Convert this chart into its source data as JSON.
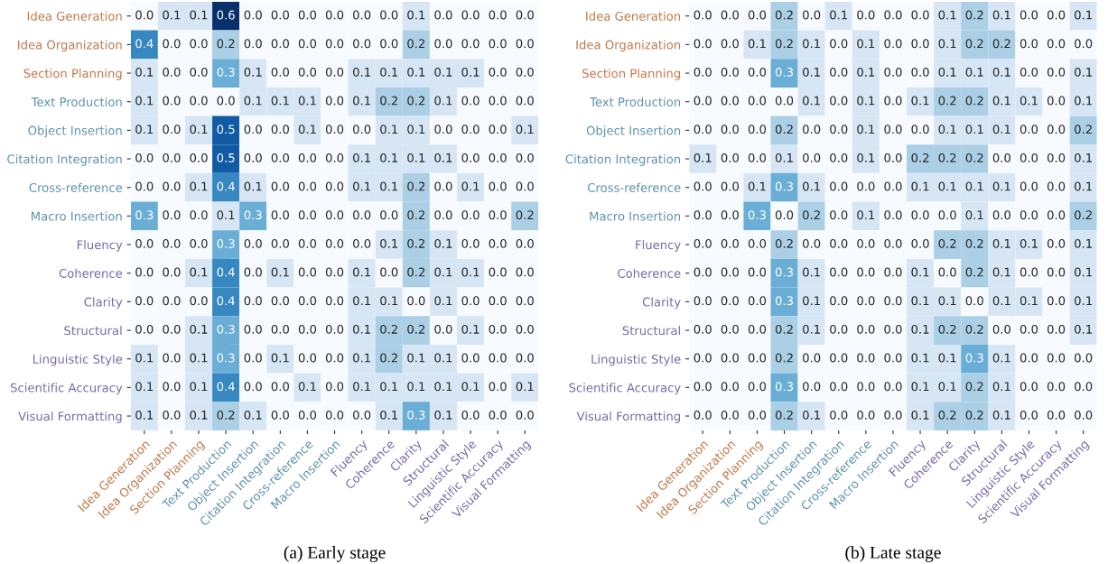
{
  "chart_data": [
    {
      "type": "heatmap",
      "title": "(a) Early stage",
      "categories": [
        "Idea Generation",
        "Idea Organization",
        "Section Planning",
        "Text Production",
        "Object Insertion",
        "Citation Integration",
        "Cross-reference",
        "Macro Insertion",
        "Fluency",
        "Coherence",
        "Clarity",
        "Structural",
        "Linguistic Style",
        "Scientific Accuracy",
        "Visual Formatting"
      ],
      "y_categories": [
        "Idea Generation",
        "Idea Organization",
        "Section Planning",
        "Text Production",
        "Object Insertion",
        "Citation Integration",
        "Cross-reference",
        "Macro Insertion",
        "Fluency",
        "Coherence",
        "Clarity",
        "Structural",
        "Linguistic Style",
        "Scientific Accuracy",
        "Visual Formatting"
      ],
      "cells": [
        [
          0.0,
          0.1,
          0.1,
          0.6,
          0.0,
          0.0,
          0.0,
          0.0,
          0.0,
          0.0,
          0.1,
          0.0,
          0.0,
          0.0,
          0.0
        ],
        [
          0.4,
          0.0,
          0.0,
          0.2,
          0.0,
          0.0,
          0.0,
          0.0,
          0.0,
          0.0,
          0.2,
          0.0,
          0.0,
          0.0,
          0.0
        ],
        [
          0.1,
          0.0,
          0.0,
          0.3,
          0.1,
          0.0,
          0.0,
          0.0,
          0.1,
          0.1,
          0.1,
          0.1,
          0.1,
          0.0,
          0.0
        ],
        [
          0.1,
          0.0,
          0.0,
          0.0,
          0.1,
          0.1,
          0.1,
          0.0,
          0.1,
          0.2,
          0.2,
          0.1,
          0.0,
          0.0,
          0.0
        ],
        [
          0.1,
          0.0,
          0.1,
          0.5,
          0.0,
          0.0,
          0.1,
          0.0,
          0.0,
          0.1,
          0.1,
          0.0,
          0.0,
          0.0,
          0.1
        ],
        [
          0.0,
          0.0,
          0.0,
          0.5,
          0.0,
          0.0,
          0.0,
          0.0,
          0.1,
          0.1,
          0.1,
          0.1,
          0.0,
          0.0,
          0.0
        ],
        [
          0.0,
          0.0,
          0.1,
          0.4,
          0.1,
          0.0,
          0.0,
          0.0,
          0.1,
          0.1,
          0.2,
          0.0,
          0.1,
          0.0,
          0.0
        ],
        [
          0.3,
          0.0,
          0.0,
          0.1,
          0.3,
          0.0,
          0.0,
          0.0,
          0.0,
          0.0,
          0.2,
          0.0,
          0.0,
          0.0,
          0.2
        ],
        [
          0.0,
          0.0,
          0.0,
          0.3,
          0.0,
          0.0,
          0.0,
          0.0,
          0.0,
          0.1,
          0.2,
          0.1,
          0.0,
          0.0,
          0.0
        ],
        [
          0.0,
          0.0,
          0.1,
          0.4,
          0.0,
          0.1,
          0.0,
          0.0,
          0.1,
          0.0,
          0.2,
          0.1,
          0.1,
          0.0,
          0.0
        ],
        [
          0.0,
          0.0,
          0.0,
          0.4,
          0.0,
          0.0,
          0.0,
          0.0,
          0.1,
          0.1,
          0.0,
          0.1,
          0.0,
          0.0,
          0.0
        ],
        [
          0.0,
          0.0,
          0.1,
          0.3,
          0.0,
          0.0,
          0.0,
          0.0,
          0.1,
          0.2,
          0.2,
          0.0,
          0.1,
          0.0,
          0.0
        ],
        [
          0.1,
          0.0,
          0.1,
          0.3,
          0.0,
          0.1,
          0.0,
          0.0,
          0.1,
          0.2,
          0.1,
          0.1,
          0.0,
          0.0,
          0.0
        ],
        [
          0.1,
          0.0,
          0.1,
          0.4,
          0.0,
          0.0,
          0.1,
          0.0,
          0.1,
          0.1,
          0.1,
          0.1,
          0.1,
          0.0,
          0.1
        ],
        [
          0.1,
          0.0,
          0.1,
          0.2,
          0.1,
          0.0,
          0.0,
          0.0,
          0.0,
          0.1,
          0.3,
          0.1,
          0.0,
          0.0,
          0.0
        ]
      ],
      "cell_labels": [
        [
          "0.0",
          "0.1",
          "0.1",
          "0.6",
          "0.0",
          "0.0",
          "0.0",
          "0.0",
          "0.0",
          "0.0",
          "0.1",
          "0.0",
          "0.0",
          "0.0",
          "0.0"
        ],
        [
          "0.4",
          "0.0",
          "0.0",
          "0.2",
          "0.0",
          "0.0",
          "0.0",
          "0.0",
          "0.0",
          "0.0",
          "0.2",
          "0.0",
          "0.0",
          "0.0",
          "0.0"
        ],
        [
          "0.1",
          "0.0",
          "0.0",
          "0.3",
          "0.1",
          "0.0",
          "0.0",
          "0.0",
          "0.1",
          "0.1",
          "0.1",
          "0.1",
          "0.1",
          "0.0",
          "0.0"
        ],
        [
          "0.1",
          "0.0",
          "0.0",
          "0.0",
          "0.1",
          "0.1",
          "0.1",
          "0.0",
          "0.1",
          "0.2",
          "0.2",
          "0.1",
          "0.0",
          "0.0",
          "0.0"
        ],
        [
          "0.1",
          "0.0",
          "0.1",
          "0.5",
          "0.0",
          "0.0",
          "0.1",
          "0.0",
          "0.0",
          "0.1",
          "0.1",
          "0.0",
          "0.0",
          "0.0",
          "0.1"
        ],
        [
          "0.0",
          "0.0",
          "0.0",
          "0.5",
          "0.0",
          "0.0",
          "0.0",
          "0.0",
          "0.1",
          "0.1",
          "0.1",
          "0.1",
          "0.0",
          "0.0",
          "0.0"
        ],
        [
          "0.0",
          "0.0",
          "0.1",
          "0.4",
          "0.1",
          "0.0",
          "0.0",
          "0.0",
          "0.1",
          "0.1",
          "0.2",
          "0.0",
          "0.1",
          "0.0",
          "0.0"
        ],
        [
          "0.3",
          "0.0",
          "0.0",
          "0.1",
          "0.3",
          "0.0",
          "0.0",
          "0.0",
          "0.0",
          "0.0",
          "0.2",
          "0.0",
          "0.0",
          "0.0",
          "0.2"
        ],
        [
          "0.0",
          "0.0",
          "0.0",
          "0.3",
          "0.0",
          "0.0",
          "0.0",
          "0.0",
          "0.0",
          "0.1",
          "0.2",
          "0.1",
          "0.0",
          "0.0",
          "0.0"
        ],
        [
          "0.0",
          "0.0",
          "0.1",
          "0.4",
          "0.0",
          "0.1",
          "0.0",
          "0.0",
          "0.1",
          "0.0",
          "0.2",
          "0.1",
          "0.1",
          "0.0",
          "0.0"
        ],
        [
          "0.0",
          "0.0",
          "0.0",
          "0.4",
          "0.0",
          "0.0",
          "0.0",
          "0.0",
          "0.1",
          "0.1",
          "0.0",
          "0.1",
          "0.0",
          "0.0",
          "0.0"
        ],
        [
          "0.0",
          "0.0",
          "0.1",
          "0.3",
          "0.0",
          "0.0",
          "0.0",
          "0.0",
          "0.1",
          "0.2",
          "0.2",
          "0.0",
          "0.1",
          "0.0",
          "0.0"
        ],
        [
          "0.1",
          "0.0",
          "0.1",
          "0.3",
          "0.0",
          "0.1",
          "0.0",
          "0.0",
          "0.1",
          "0.2",
          "0.1",
          "0.1",
          "0.0",
          "0.0",
          "0.0"
        ],
        [
          "0.1",
          "0.0",
          "0.1",
          "0.4",
          "0.0",
          "0.0",
          "0.1",
          "0.0",
          "0.1",
          "0.1",
          "0.1",
          "0.1",
          "0.1",
          "0.0",
          "0.1"
        ],
        [
          "0.1",
          "0.0",
          "0.1",
          "0.2",
          "0.1",
          "0.0",
          "0.0",
          "0.0",
          "0.0",
          "0.1",
          "0.3",
          "0.1",
          "0.0",
          "0.0",
          "0.0"
        ]
      ],
      "data_labels": true
    },
    {
      "type": "heatmap",
      "title": "(b) Late stage",
      "categories": [
        "Idea Generation",
        "Idea Organization",
        "Section Planning",
        "Text Production",
        "Object Insertion",
        "Citation Integration",
        "Cross-reference",
        "Macro Insertion",
        "Fluency",
        "Coherence",
        "Clarity",
        "Structural",
        "Linguistic Style",
        "Scientific Accuracy",
        "Visual Formatting"
      ],
      "y_categories": [
        "Idea Generation",
        "Idea Organization",
        "Section Planning",
        "Text Production",
        "Object Insertion",
        "Citation Integration",
        "Cross-reference",
        "Macro Insertion",
        "Fluency",
        "Coherence",
        "Clarity",
        "Structural",
        "Linguistic Style",
        "Scientific Accuracy",
        "Visual Formatting"
      ],
      "cells": [
        [
          0.0,
          0.0,
          0.0,
          0.2,
          0.0,
          0.1,
          0.0,
          0.0,
          0.0,
          0.1,
          0.2,
          0.1,
          0.0,
          0.0,
          0.1
        ],
        [
          0.0,
          0.0,
          0.1,
          0.2,
          0.1,
          0.0,
          0.1,
          0.0,
          0.0,
          0.1,
          0.2,
          0.2,
          0.0,
          0.0,
          0.0
        ],
        [
          0.0,
          0.0,
          0.0,
          0.3,
          0.1,
          0.0,
          0.1,
          0.0,
          0.0,
          0.1,
          0.1,
          0.1,
          0.0,
          0.0,
          0.1
        ],
        [
          0.0,
          0.0,
          0.0,
          0.0,
          0.1,
          0.0,
          0.1,
          0.0,
          0.1,
          0.2,
          0.2,
          0.1,
          0.1,
          0.0,
          0.1
        ],
        [
          0.0,
          0.0,
          0.0,
          0.2,
          0.0,
          0.0,
          0.1,
          0.0,
          0.0,
          0.1,
          0.1,
          0.1,
          0.0,
          0.0,
          0.2
        ],
        [
          0.1,
          0.0,
          0.0,
          0.1,
          0.0,
          0.0,
          0.1,
          0.0,
          0.2,
          0.2,
          0.2,
          0.0,
          0.0,
          0.0,
          0.1
        ],
        [
          0.0,
          0.0,
          0.1,
          0.3,
          0.1,
          0.0,
          0.0,
          0.0,
          0.1,
          0.1,
          0.1,
          0.1,
          0.0,
          0.0,
          0.1
        ],
        [
          0.0,
          0.0,
          0.3,
          0.0,
          0.2,
          0.0,
          0.1,
          0.0,
          0.0,
          0.0,
          0.1,
          0.0,
          0.0,
          0.0,
          0.2
        ],
        [
          0.0,
          0.0,
          0.0,
          0.2,
          0.0,
          0.0,
          0.0,
          0.0,
          0.0,
          0.2,
          0.2,
          0.1,
          0.1,
          0.0,
          0.1
        ],
        [
          0.0,
          0.0,
          0.0,
          0.3,
          0.1,
          0.0,
          0.0,
          0.0,
          0.1,
          0.0,
          0.2,
          0.1,
          0.0,
          0.0,
          0.1
        ],
        [
          0.0,
          0.0,
          0.0,
          0.3,
          0.1,
          0.0,
          0.0,
          0.0,
          0.1,
          0.1,
          0.0,
          0.1,
          0.1,
          0.0,
          0.1
        ],
        [
          0.0,
          0.0,
          0.0,
          0.2,
          0.1,
          0.0,
          0.0,
          0.0,
          0.1,
          0.2,
          0.2,
          0.0,
          0.0,
          0.0,
          0.1
        ],
        [
          0.0,
          0.0,
          0.0,
          0.2,
          0.0,
          0.0,
          0.0,
          0.0,
          0.1,
          0.1,
          0.3,
          0.1,
          0.0,
          0.0,
          0.0
        ],
        [
          0.0,
          0.0,
          0.0,
          0.3,
          0.0,
          0.0,
          0.0,
          0.0,
          0.1,
          0.1,
          0.2,
          0.1,
          0.0,
          0.0,
          0.0
        ],
        [
          0.0,
          0.0,
          0.0,
          0.2,
          0.1,
          0.0,
          0.0,
          0.0,
          0.1,
          0.2,
          0.2,
          0.1,
          0.0,
          0.0,
          0.0
        ]
      ],
      "cell_labels": [
        [
          "0.0",
          "0.0",
          "0.0",
          "0.2",
          "0.0",
          "0.1",
          "0.0",
          "0.0",
          "0.0",
          "0.1",
          "0.2",
          "0.1",
          "0.0",
          "0.0",
          "0.1"
        ],
        [
          "0.0",
          "0.0",
          "0.1",
          "0.2",
          "0.1",
          "0.0",
          "0.1",
          "0.0",
          "0.0",
          "0.1",
          "0.2",
          "0.2",
          "0.0",
          "0.0",
          "0.0"
        ],
        [
          "0.0",
          "0.0",
          "0.0",
          "0.3",
          "0.1",
          "0.0",
          "0.1",
          "0.0",
          "0.0",
          "0.1",
          "0.1",
          "0.1",
          "0.0",
          "0.0",
          "0.1"
        ],
        [
          "0.0",
          "0.0",
          "0.0",
          "0.0",
          "0.1",
          "0.0",
          "0.1",
          "0.0",
          "0.1",
          "0.2",
          "0.2",
          "0.1",
          "0.1",
          "0.0",
          "0.1"
        ],
        [
          "0.0",
          "0.0",
          "0.0",
          "0.2",
          "0.0",
          "0.0",
          "0.1",
          "0.0",
          "0.0",
          "0.1",
          "0.1",
          "0.1",
          "0.0",
          "0.0",
          "0.2"
        ],
        [
          "0.1",
          "0.0",
          "0.0",
          "0.1",
          "0.0",
          "0.0",
          "0.1",
          "0.0",
          "0.2",
          "0.2",
          "0.2",
          "0.0",
          "0.0",
          "0.0",
          "0.1"
        ],
        [
          "0.0",
          "0.0",
          "0.1",
          "0.3",
          "0.1",
          "0.0",
          "0.0",
          "0.0",
          "0.1",
          "0.1",
          "0.1",
          "0.1",
          "0.0",
          "0.0",
          "0.1"
        ],
        [
          "0.0",
          "0.0",
          "0.3",
          "0.0",
          "0.2",
          "0.0",
          "0.1",
          "0.0",
          "0.0",
          "0.0",
          "0.1",
          "0.0",
          "0.0",
          "0.0",
          "0.2"
        ],
        [
          "0.0",
          "0.0",
          "0.0",
          "0.2",
          "0.0",
          "0.0",
          "0.0",
          "0.0",
          "0.0",
          "0.2",
          "0.2",
          "0.1",
          "0.1",
          "0.0",
          "0.1"
        ],
        [
          "0.0",
          "0.0",
          "0.0",
          "0.3",
          "0.1",
          "0.0",
          "0.0",
          "0.0",
          "0.1",
          "0.0",
          "0.2",
          "0.1",
          "0.0",
          "0.0",
          "0.1"
        ],
        [
          "0.0",
          "0.0",
          "0.0",
          "0.3",
          "0.1",
          "0.0",
          "0.0",
          "0.0",
          "0.1",
          "0.1",
          "0.0",
          "0.1",
          "0.1",
          "0.0",
          "0.1"
        ],
        [
          "0.0",
          "0.0",
          "0.0",
          "0.2",
          "0.1",
          "0.0",
          "0.0",
          "0.0",
          "0.1",
          "0.2",
          "0.2",
          "0.0",
          "0.0",
          "0.0",
          "0.1"
        ],
        [
          "0.0",
          "0.0",
          "0.0",
          "0.2",
          "0.0",
          "0.0",
          "0.0",
          "0.0",
          "0.1",
          "0.1",
          "0.3",
          "0.1",
          "0.0",
          "0.0",
          "0.0"
        ],
        [
          "0.0",
          "0.0",
          "0.0",
          "0.3",
          "0.0",
          "0.0",
          "0.0",
          "0.0",
          "0.1",
          "0.1",
          "0.2",
          "0.1",
          "0.0",
          "0.0",
          "0.0"
        ],
        [
          "0.0",
          "0.0",
          "0.0",
          "0.2",
          "0.1",
          "0.0",
          "0.0",
          "0.0",
          "0.1",
          "0.2",
          "0.2",
          "0.1",
          "0.0",
          "0.0",
          "0.0"
        ]
      ],
      "data_labels": true
    }
  ]
}
